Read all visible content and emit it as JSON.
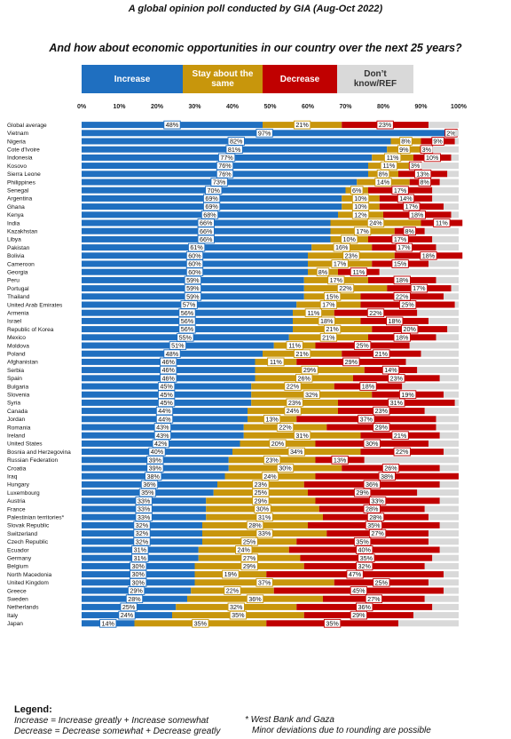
{
  "header": {
    "title": "A global opinion poll conducted by GIA (Aug-Oct 2022)",
    "question": "And how about economic opportunities in our country over the next 25 years?"
  },
  "legend_boxes": [
    {
      "label": "Increase",
      "color": "#1f6fc0",
      "text_color": "#ffffff"
    },
    {
      "label": "Stay about the same",
      "color": "#c8960c",
      "text_color": "#ffffff"
    },
    {
      "label": "Decrease",
      "color": "#c00000",
      "text_color": "#ffffff"
    },
    {
      "label": "Don’t know/REF",
      "color": "#d9d9d9",
      "text_color": "#333333"
    }
  ],
  "footer": {
    "legend_title": "Legend:",
    "increase_def": "Increase = Increase greatly + Increase somewhat",
    "decrease_def": "Decrease = Decrease somewhat + Decrease greatly",
    "note1": "* West Bank and Gaza",
    "note2": "Minor deviations due to rounding are possible"
  },
  "chart_data": {
    "type": "bar",
    "orientation": "horizontal-stacked-100",
    "xlim": [
      0,
      100
    ],
    "x_ticks": [
      "0%",
      "10%",
      "20%",
      "30%",
      "40%",
      "50%",
      "60%",
      "70%",
      "80%",
      "90%",
      "100%"
    ],
    "legend_position": "top",
    "grid": false,
    "series_names": [
      "Increase",
      "Stay about the same",
      "Decrease",
      "Don’t know/REF"
    ],
    "colors": [
      "#1f6fc0",
      "#c8960c",
      "#c00000",
      "#d9d9d9"
    ],
    "rows": [
      {
        "label": "Global average",
        "values": [
          48,
          21,
          23,
          8
        ],
        "labels": [
          "48%",
          "21%",
          "23%",
          ""
        ]
      },
      {
        "label": "Vietnam",
        "values": [
          97,
          0,
          2,
          1
        ],
        "labels": [
          "97%",
          "",
          "2%",
          ""
        ]
      },
      {
        "label": "Nigeria",
        "values": [
          82,
          8,
          9,
          1
        ],
        "labels": [
          "82%",
          "8%",
          "9%",
          ""
        ]
      },
      {
        "label": "Cote d'Ivoire",
        "values": [
          81,
          9,
          3,
          7
        ],
        "labels": [
          "81%",
          "9%",
          "3%",
          ""
        ]
      },
      {
        "label": "Indonesia",
        "values": [
          77,
          11,
          10,
          2
        ],
        "labels": [
          "77%",
          "11%",
          "10%",
          ""
        ]
      },
      {
        "label": "Kosovo",
        "values": [
          76,
          11,
          3,
          10
        ],
        "labels": [
          "76%",
          "11%",
          "3%",
          ""
        ]
      },
      {
        "label": "Sierra Leone",
        "values": [
          76,
          8,
          13,
          3
        ],
        "labels": [
          "76%",
          "8%",
          "13%",
          ""
        ]
      },
      {
        "label": "Philippines",
        "values": [
          73,
          14,
          8,
          5
        ],
        "labels": [
          "73%",
          "14%",
          "8%",
          ""
        ]
      },
      {
        "label": "Senegal",
        "values": [
          70,
          6,
          17,
          7
        ],
        "labels": [
          "70%",
          "6%",
          "17%",
          ""
        ]
      },
      {
        "label": "Argentina",
        "values": [
          69,
          10,
          14,
          7
        ],
        "labels": [
          "69%",
          "10%",
          "14%",
          ""
        ]
      },
      {
        "label": "Ghana",
        "values": [
          69,
          10,
          17,
          4
        ],
        "labels": [
          "69%",
          "10%",
          "17%",
          ""
        ]
      },
      {
        "label": "Kenya",
        "values": [
          68,
          12,
          18,
          2
        ],
        "labels": [
          "68%",
          "12%",
          "18%",
          ""
        ]
      },
      {
        "label": "India",
        "values": [
          66,
          24,
          11,
          0
        ],
        "labels": [
          "66%",
          "24%",
          "11%",
          ""
        ]
      },
      {
        "label": "Kazakhstan",
        "values": [
          66,
          17,
          8,
          9
        ],
        "labels": [
          "66%",
          "17%",
          "8%",
          ""
        ]
      },
      {
        "label": "Libya",
        "values": [
          66,
          10,
          17,
          7
        ],
        "labels": [
          "66%",
          "10%",
          "17%",
          ""
        ]
      },
      {
        "label": "Pakistan",
        "values": [
          61,
          16,
          17,
          6
        ],
        "labels": [
          "61%",
          "16%",
          "17%",
          ""
        ]
      },
      {
        "label": "Bolivia",
        "values": [
          60,
          23,
          18,
          0
        ],
        "labels": [
          "60%",
          "23%",
          "18%",
          ""
        ]
      },
      {
        "label": "Cameroon",
        "values": [
          60,
          17,
          15,
          8
        ],
        "labels": [
          "60%",
          "17%",
          "15%",
          ""
        ]
      },
      {
        "label": "Georgia",
        "values": [
          60,
          8,
          11,
          21
        ],
        "labels": [
          "60%",
          "8%",
          "11%",
          ""
        ]
      },
      {
        "label": "Peru",
        "values": [
          59,
          17,
          18,
          6
        ],
        "labels": [
          "59%",
          "17%",
          "18%",
          ""
        ]
      },
      {
        "label": "Portugal",
        "values": [
          59,
          22,
          17,
          2
        ],
        "labels": [
          "59%",
          "22%",
          "17%",
          ""
        ]
      },
      {
        "label": "Thailand",
        "values": [
          59,
          15,
          22,
          4
        ],
        "labels": [
          "59%",
          "15%",
          "22%",
          ""
        ]
      },
      {
        "label": "United Arab Emirates",
        "values": [
          57,
          17,
          25,
          1
        ],
        "labels": [
          "57%",
          "17%",
          "25%",
          ""
        ]
      },
      {
        "label": "Armenia",
        "values": [
          56,
          11,
          22,
          11
        ],
        "labels": [
          "56%",
          "11%",
          "22%",
          ""
        ]
      },
      {
        "label": "Israel",
        "values": [
          56,
          18,
          18,
          8
        ],
        "labels": [
          "56%",
          "18%",
          "18%",
          ""
        ]
      },
      {
        "label": "Republic of Korea",
        "values": [
          56,
          21,
          20,
          3
        ],
        "labels": [
          "56%",
          "21%",
          "20%",
          ""
        ]
      },
      {
        "label": "Mexico",
        "values": [
          55,
          21,
          18,
          6
        ],
        "labels": [
          "55%",
          "21%",
          "18%",
          ""
        ]
      },
      {
        "label": "Moldova",
        "values": [
          51,
          11,
          25,
          13
        ],
        "labels": [
          "51%",
          "11%",
          "25%",
          ""
        ]
      },
      {
        "label": "Poland",
        "values": [
          48,
          21,
          21,
          10
        ],
        "labels": [
          "48%",
          "21%",
          "21%",
          ""
        ]
      },
      {
        "label": "Afghanistan",
        "values": [
          46,
          11,
          29,
          14
        ],
        "labels": [
          "46%",
          "11%",
          "29%",
          ""
        ]
      },
      {
        "label": "Serbia",
        "values": [
          46,
          29,
          14,
          11
        ],
        "labels": [
          "46%",
          "29%",
          "14%",
          ""
        ]
      },
      {
        "label": "Spain",
        "values": [
          46,
          26,
          23,
          5
        ],
        "labels": [
          "46%",
          "26%",
          "23%",
          ""
        ]
      },
      {
        "label": "Bulgaria",
        "values": [
          45,
          22,
          18,
          15
        ],
        "labels": [
          "45%",
          "22%",
          "18%",
          ""
        ]
      },
      {
        "label": "Slovenia",
        "values": [
          45,
          32,
          19,
          4
        ],
        "labels": [
          "45%",
          "32%",
          "19%",
          ""
        ]
      },
      {
        "label": "Syria",
        "values": [
          45,
          23,
          31,
          1
        ],
        "labels": [
          "45%",
          "23%",
          "31%",
          ""
        ]
      },
      {
        "label": "Canada",
        "values": [
          44,
          24,
          23,
          9
        ],
        "labels": [
          "44%",
          "24%",
          "23%",
          ""
        ]
      },
      {
        "label": "Jordan",
        "values": [
          44,
          13,
          37,
          6
        ],
        "labels": [
          "44%",
          "13%",
          "37%",
          ""
        ]
      },
      {
        "label": "Romania",
        "values": [
          43,
          22,
          29,
          6
        ],
        "labels": [
          "43%",
          "22%",
          "29%",
          ""
        ]
      },
      {
        "label": "Ireland",
        "values": [
          43,
          31,
          21,
          5
        ],
        "labels": [
          "43%",
          "31%",
          "21%",
          ""
        ]
      },
      {
        "label": "United States",
        "values": [
          42,
          20,
          30,
          8
        ],
        "labels": [
          "42%",
          "20%",
          "30%",
          ""
        ]
      },
      {
        "label": "Bosnia and Herzegovina",
        "values": [
          40,
          34,
          22,
          4
        ],
        "labels": [
          "40%",
          "34%",
          "22%",
          ""
        ]
      },
      {
        "label": "Russian Federation",
        "values": [
          39,
          23,
          13,
          25
        ],
        "labels": [
          "39%",
          "23%",
          "13%",
          ""
        ]
      },
      {
        "label": "Croatia",
        "values": [
          39,
          30,
          26,
          5
        ],
        "labels": [
          "39%",
          "30%",
          "26%",
          ""
        ]
      },
      {
        "label": "Iraq",
        "values": [
          38,
          24,
          38,
          0
        ],
        "labels": [
          "38%",
          "24%",
          "38%",
          ""
        ]
      },
      {
        "label": "Hungary",
        "values": [
          36,
          23,
          36,
          5
        ],
        "labels": [
          "36%",
          "23%",
          "36%",
          ""
        ]
      },
      {
        "label": "Luxembourg",
        "values": [
          35,
          25,
          29,
          11
        ],
        "labels": [
          "35%",
          "25%",
          "29%",
          ""
        ]
      },
      {
        "label": "Austria",
        "values": [
          33,
          29,
          33,
          5
        ],
        "labels": [
          "33%",
          "29%",
          "33%",
          ""
        ]
      },
      {
        "label": "France",
        "values": [
          33,
          30,
          28,
          9
        ],
        "labels": [
          "33%",
          "30%",
          "28%",
          ""
        ]
      },
      {
        "label": "Palestinian territories*",
        "values": [
          33,
          31,
          28,
          8
        ],
        "labels": [
          "33%",
          "31%",
          "28%",
          ""
        ]
      },
      {
        "label": "Slovak Republic",
        "values": [
          32,
          28,
          35,
          5
        ],
        "labels": [
          "32%",
          "28%",
          "35%",
          ""
        ]
      },
      {
        "label": "Switzerland",
        "values": [
          32,
          33,
          27,
          8
        ],
        "labels": [
          "32%",
          "33%",
          "27%",
          ""
        ]
      },
      {
        "label": "Czech Republic",
        "values": [
          32,
          25,
          35,
          8
        ],
        "labels": [
          "32%",
          "25%",
          "35%",
          ""
        ]
      },
      {
        "label": "Ecuador",
        "values": [
          31,
          24,
          40,
          5
        ],
        "labels": [
          "31%",
          "24%",
          "40%",
          ""
        ]
      },
      {
        "label": "Germany",
        "values": [
          31,
          27,
          35,
          7
        ],
        "labels": [
          "31%",
          "27%",
          "35%",
          ""
        ]
      },
      {
        "label": "Belgium",
        "values": [
          30,
          29,
          32,
          9
        ],
        "labels": [
          "30%",
          "29%",
          "32%",
          ""
        ]
      },
      {
        "label": "North Macedonia",
        "values": [
          30,
          19,
          47,
          4
        ],
        "labels": [
          "30%",
          "19%",
          "47%",
          ""
        ]
      },
      {
        "label": "United Kingdom",
        "values": [
          30,
          37,
          25,
          8
        ],
        "labels": [
          "30%",
          "37%",
          "25%",
          ""
        ]
      },
      {
        "label": "Greece",
        "values": [
          29,
          22,
          45,
          4
        ],
        "labels": [
          "29%",
          "22%",
          "45%",
          ""
        ]
      },
      {
        "label": "Sweden",
        "values": [
          28,
          36,
          27,
          9
        ],
        "labels": [
          "28%",
          "36%",
          "27%",
          ""
        ]
      },
      {
        "label": "Netherlands",
        "values": [
          25,
          32,
          36,
          7
        ],
        "labels": [
          "25%",
          "32%",
          "36%",
          ""
        ]
      },
      {
        "label": "Italy",
        "values": [
          24,
          35,
          29,
          12
        ],
        "labels": [
          "24%",
          "35%",
          "29%",
          ""
        ]
      },
      {
        "label": "Japan",
        "values": [
          14,
          35,
          35,
          16
        ],
        "labels": [
          "14%",
          "35%",
          "35%",
          ""
        ]
      }
    ]
  }
}
